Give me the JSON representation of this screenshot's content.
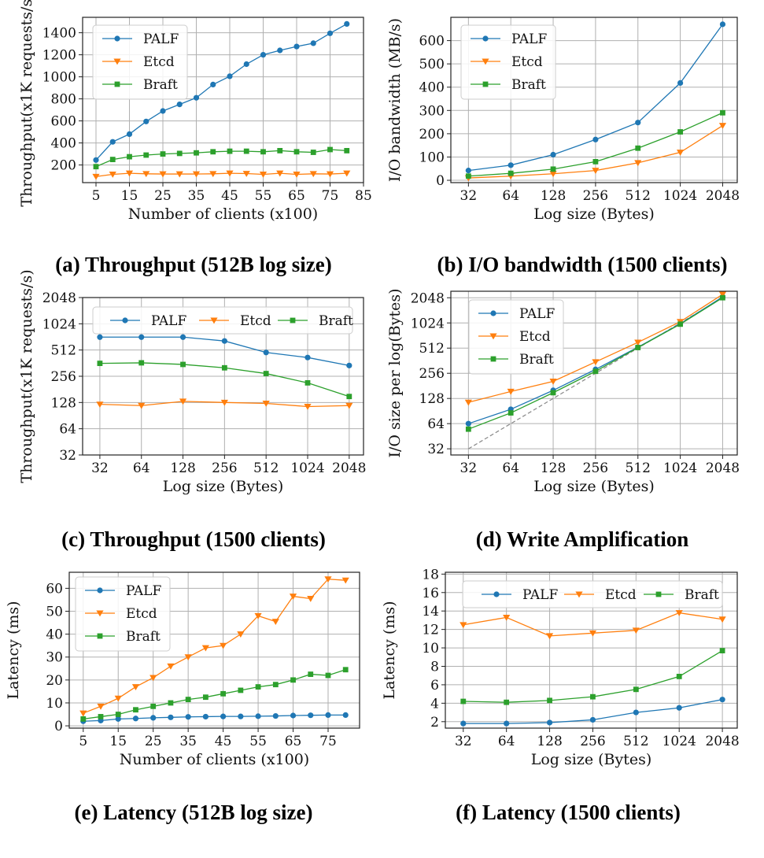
{
  "colors": {
    "PALF": "#1f77b4",
    "Etcd": "#ff7f0e",
    "Braft": "#2ca02c"
  },
  "chart_data": [
    {
      "id": "a",
      "type": "line",
      "caption": "(a) Throughput (512B log size)",
      "xlabel": "Number of clients (x100)",
      "ylabel": "Throughput(x1K requests/s)",
      "xscale": "linear",
      "yscale": "linear",
      "xlim": [
        1,
        85
      ],
      "ylim": [
        40,
        1540
      ],
      "xticks": [
        5,
        15,
        25,
        35,
        45,
        55,
        65,
        75,
        85
      ],
      "yticks": [
        200,
        400,
        600,
        800,
        1000,
        1200,
        1400
      ],
      "legend": "top-left",
      "legend_layout": "column",
      "x": [
        5,
        10,
        15,
        20,
        25,
        30,
        35,
        40,
        45,
        50,
        55,
        60,
        65,
        70,
        75,
        80
      ],
      "series": [
        {
          "name": "PALF",
          "marker": "circle",
          "values": [
            245,
            410,
            480,
            595,
            690,
            750,
            810,
            930,
            1005,
            1115,
            1200,
            1240,
            1275,
            1305,
            1395,
            1480
          ]
        },
        {
          "name": "Etcd",
          "marker": "triangle",
          "values": [
            95,
            115,
            125,
            120,
            118,
            118,
            118,
            120,
            125,
            122,
            115,
            125,
            115,
            120,
            118,
            125
          ]
        },
        {
          "name": "Braft",
          "marker": "square",
          "values": [
            185,
            250,
            275,
            290,
            300,
            305,
            310,
            320,
            325,
            325,
            320,
            330,
            320,
            315,
            340,
            330
          ]
        }
      ]
    },
    {
      "id": "b",
      "type": "line",
      "caption": "(b) I/O bandwidth (1500 clients)",
      "xlabel": "Log size (Bytes)",
      "ylabel": "I/O bandwidth (MB/s)",
      "xscale": "log2",
      "yscale": "linear",
      "xlim": [
        24,
        2600
      ],
      "ylim": [
        -10,
        700
      ],
      "xticks": [
        32,
        64,
        128,
        256,
        512,
        1024,
        2048
      ],
      "yticks": [
        0,
        100,
        200,
        300,
        400,
        500,
        600
      ],
      "legend": "top-left",
      "legend_layout": "column",
      "x": [
        32,
        64,
        128,
        256,
        512,
        1024,
        2048
      ],
      "series": [
        {
          "name": "PALF",
          "marker": "circle",
          "values": [
            42,
            65,
            110,
            175,
            248,
            418,
            670
          ]
        },
        {
          "name": "Etcd",
          "marker": "triangle",
          "values": [
            10,
            18,
            28,
            42,
            75,
            120,
            235
          ]
        },
        {
          "name": "Braft",
          "marker": "square",
          "values": [
            18,
            30,
            48,
            80,
            138,
            208,
            290
          ]
        }
      ]
    },
    {
      "id": "c",
      "type": "line",
      "caption": "(c) Throughput (1500 clients)",
      "xlabel": "Log size (Bytes)",
      "ylabel": "Throughput(x1K requests/s)",
      "xscale": "log2",
      "yscale": "log2",
      "xlim": [
        24,
        2600
      ],
      "ylim": [
        32,
        2048
      ],
      "xticks": [
        32,
        64,
        128,
        256,
        512,
        1024,
        2048
      ],
      "yticks": [
        32,
        64,
        128,
        256,
        512,
        1024,
        2048
      ],
      "legend": "top",
      "legend_layout": "row",
      "x": [
        32,
        64,
        128,
        256,
        512,
        1024,
        2048
      ],
      "series": [
        {
          "name": "PALF",
          "marker": "circle",
          "values": [
            720,
            720,
            720,
            650,
            480,
            420,
            340
          ]
        },
        {
          "name": "Etcd",
          "marker": "triangle",
          "values": [
            122,
            118,
            132,
            128,
            125,
            115,
            118
          ]
        },
        {
          "name": "Braft",
          "marker": "square",
          "values": [
            360,
            365,
            350,
            320,
            275,
            215,
            150
          ]
        }
      ]
    },
    {
      "id": "d",
      "type": "line",
      "caption": "(d) Write Amplification",
      "xlabel": "Log size (Bytes)",
      "ylabel": "I/O size per log(Bytes)",
      "xscale": "log2",
      "yscale": "log2",
      "xlim": [
        24,
        2600
      ],
      "ylim": [
        27,
        2450
      ],
      "xticks": [
        32,
        64,
        128,
        256,
        512,
        1024,
        2048
      ],
      "yticks": [
        32,
        64,
        128,
        256,
        512,
        1024,
        2048
      ],
      "legend": "top-left",
      "legend_layout": "column",
      "reference_line": "y = x (dashed)",
      "x": [
        32,
        64,
        128,
        256,
        512,
        1024,
        2048
      ],
      "series": [
        {
          "name": "PALF",
          "marker": "circle",
          "values": [
            64,
            95,
            160,
            285,
            525,
            1000,
            2100
          ]
        },
        {
          "name": "Etcd",
          "marker": "triangle",
          "values": [
            115,
            155,
            205,
            350,
            600,
            1060,
            2250
          ]
        },
        {
          "name": "Braft",
          "marker": "square",
          "values": [
            55,
            86,
            150,
            270,
            520,
            990,
            2050
          ]
        }
      ]
    },
    {
      "id": "e",
      "type": "line",
      "caption": "(e) Latency (512B log size)",
      "xlabel": "Number of clients (x100)",
      "ylabel": "Latency (ms)",
      "xscale": "linear",
      "yscale": "linear",
      "xlim": [
        1,
        84
      ],
      "ylim": [
        -1,
        67
      ],
      "xticks": [
        5,
        15,
        25,
        35,
        45,
        55,
        65,
        75
      ],
      "yticks": [
        0,
        10,
        20,
        30,
        40,
        50,
        60
      ],
      "legend": "top-left",
      "legend_layout": "column",
      "x": [
        5,
        10,
        15,
        20,
        25,
        30,
        35,
        40,
        45,
        50,
        55,
        60,
        65,
        70,
        75,
        80
      ],
      "series": [
        {
          "name": "PALF",
          "marker": "circle",
          "values": [
            2,
            2.3,
            3,
            3.2,
            3.5,
            3.7,
            3.9,
            4.0,
            4.1,
            4.1,
            4.2,
            4.3,
            4.5,
            4.6,
            4.7,
            4.7
          ]
        },
        {
          "name": "Etcd",
          "marker": "triangle",
          "values": [
            5.5,
            8.5,
            12,
            17,
            21,
            26,
            30,
            34,
            35,
            40,
            48,
            45.5,
            56.5,
            55.5,
            64,
            63.5
          ]
        },
        {
          "name": "Braft",
          "marker": "square",
          "values": [
            3,
            4,
            5,
            7,
            8.5,
            10,
            11.5,
            12.5,
            14,
            15.5,
            17,
            18,
            20,
            22.5,
            22,
            24.5
          ]
        }
      ]
    },
    {
      "id": "f",
      "type": "line",
      "caption": "(f) Latency (1500 clients)",
      "xlabel": "Log size (Bytes)",
      "ylabel": "Latency (ms)",
      "xscale": "log2",
      "yscale": "linear",
      "xlim": [
        24,
        2600
      ],
      "ylim": [
        1.3,
        18.2
      ],
      "xticks": [
        32,
        64,
        128,
        256,
        512,
        1024,
        2048
      ],
      "yticks": [
        2,
        4,
        6,
        8,
        10,
        12,
        14,
        16,
        18
      ],
      "legend": "top",
      "legend_layout": "row",
      "x": [
        32,
        64,
        128,
        256,
        512,
        1024,
        2048
      ],
      "series": [
        {
          "name": "PALF",
          "marker": "circle",
          "values": [
            1.8,
            1.8,
            1.9,
            2.2,
            3.0,
            3.5,
            4.4
          ]
        },
        {
          "name": "Etcd",
          "marker": "triangle",
          "values": [
            12.5,
            13.3,
            11.3,
            11.6,
            11.9,
            13.8,
            13.1
          ]
        },
        {
          "name": "Braft",
          "marker": "square",
          "values": [
            4.2,
            4.1,
            4.3,
            4.7,
            5.5,
            6.9,
            9.7
          ]
        }
      ]
    }
  ]
}
